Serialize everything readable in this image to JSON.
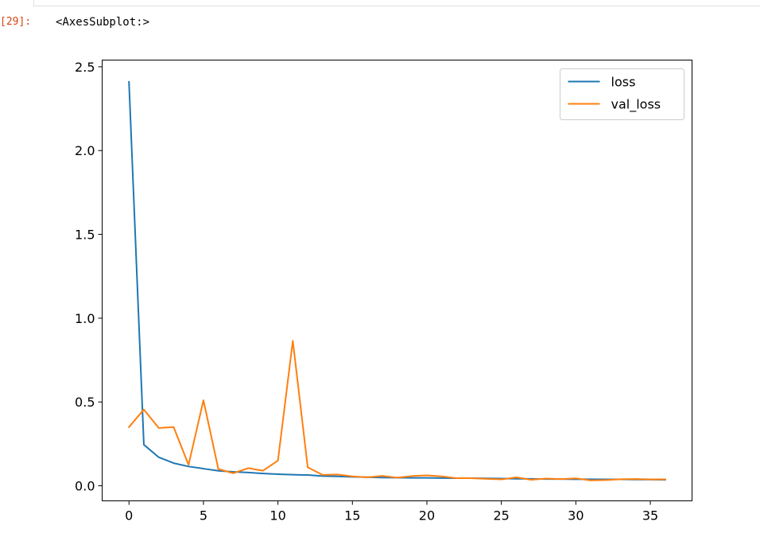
{
  "notebook": {
    "prompt": "[29]:",
    "output_text": "<AxesSubplot:>"
  },
  "colors": {
    "loss": "#1f77b4",
    "val_loss": "#ff7f0e",
    "prompt": "#d84315"
  },
  "chart_data": {
    "type": "line",
    "title": "",
    "xlabel": "",
    "ylabel": "",
    "xlim": [
      -1.8,
      37.8
    ],
    "ylim": [
      -0.09,
      2.54
    ],
    "xticks": [
      0,
      5,
      10,
      15,
      20,
      25,
      30,
      35
    ],
    "xtick_labels": [
      "0",
      "5",
      "10",
      "15",
      "20",
      "25",
      "30",
      "35"
    ],
    "yticks": [
      0.0,
      0.5,
      1.0,
      1.5,
      2.0,
      2.5
    ],
    "ytick_labels": [
      "0.0",
      "0.5",
      "1.0",
      "1.5",
      "2.0",
      "2.5"
    ],
    "grid": false,
    "legend_position": "top-right",
    "x": [
      0,
      1,
      2,
      3,
      4,
      5,
      6,
      7,
      8,
      9,
      10,
      11,
      12,
      13,
      14,
      15,
      16,
      17,
      18,
      19,
      20,
      21,
      22,
      23,
      24,
      25,
      26,
      27,
      28,
      29,
      30,
      31,
      32,
      33,
      34,
      35,
      36
    ],
    "series": [
      {
        "name": "loss",
        "color": "#1f77b4",
        "values": [
          2.41,
          0.245,
          0.17,
          0.135,
          0.115,
          0.102,
          0.089,
          0.083,
          0.079,
          0.073,
          0.069,
          0.066,
          0.064,
          0.058,
          0.056,
          0.053,
          0.051,
          0.049,
          0.048,
          0.047,
          0.047,
          0.046,
          0.045,
          0.045,
          0.044,
          0.043,
          0.042,
          0.041,
          0.04,
          0.04,
          0.039,
          0.039,
          0.038,
          0.038,
          0.037,
          0.037,
          0.036
        ]
      },
      {
        "name": "val_loss",
        "color": "#ff7f0e",
        "values": [
          0.35,
          0.455,
          0.345,
          0.35,
          0.125,
          0.51,
          0.1,
          0.075,
          0.105,
          0.09,
          0.15,
          0.865,
          0.11,
          0.065,
          0.067,
          0.056,
          0.05,
          0.059,
          0.048,
          0.058,
          0.062,
          0.056,
          0.045,
          0.045,
          0.041,
          0.038,
          0.05,
          0.036,
          0.043,
          0.04,
          0.044,
          0.032,
          0.034,
          0.039,
          0.04,
          0.038,
          0.038
        ]
      }
    ]
  }
}
